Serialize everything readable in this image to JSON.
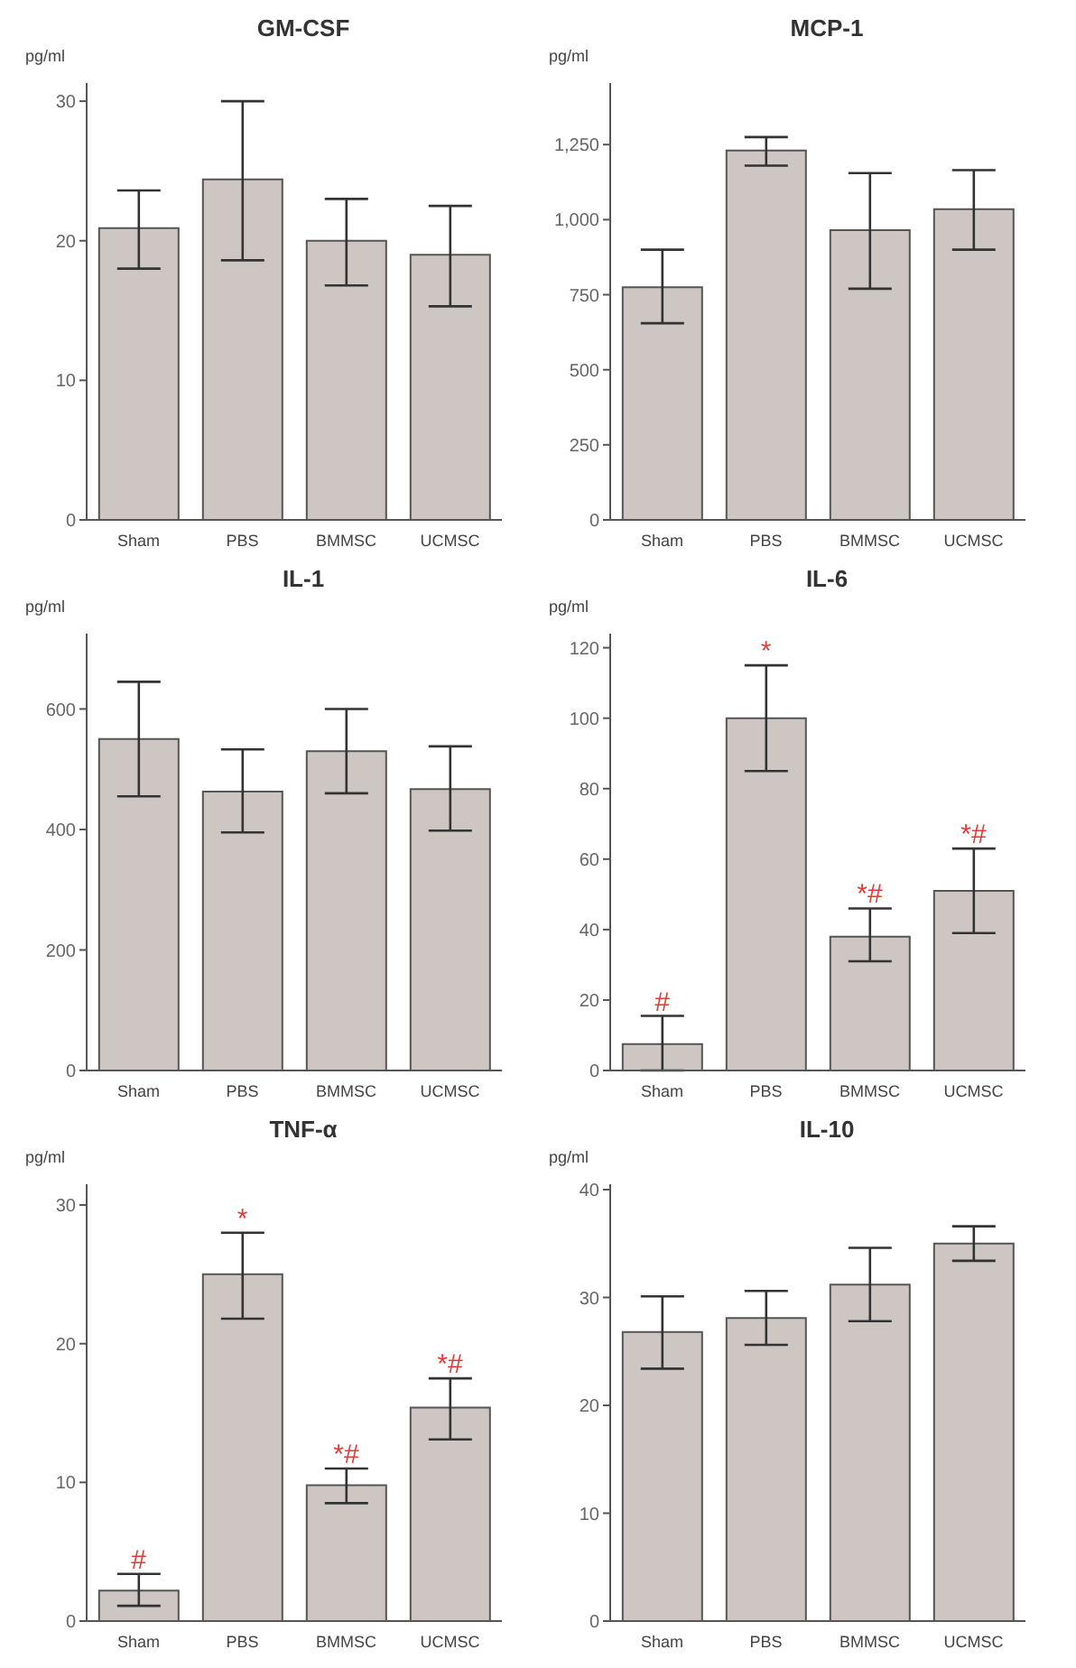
{
  "chart_data": [
    {
      "type": "bar",
      "title": "GM-CSF",
      "ylabel": "pg/ml",
      "categories": [
        "Sham",
        "PBS",
        "BMMSC",
        "UCMSC"
      ],
      "values": [
        20.9,
        24.4,
        20.0,
        19.0
      ],
      "errors": [
        [
          18.0,
          23.6
        ],
        [
          18.6,
          30.0
        ],
        [
          16.8,
          23.0
        ],
        [
          15.3,
          22.5
        ]
      ],
      "color": "#cdc6c3",
      "ylim": [
        0,
        31.3
      ],
      "yticks": [
        0,
        10,
        20,
        30
      ]
    },
    {
      "type": "bar",
      "title": "MCP-1",
      "ylabel": "pg/ml",
      "categories": [
        "Sham",
        "PBS",
        "BMMSC",
        "UCMSC"
      ],
      "values": [
        775,
        1230,
        965,
        1035
      ],
      "errors": [
        [
          655,
          900
        ],
        [
          1180,
          1275
        ],
        [
          770,
          1155
        ],
        [
          900,
          1165
        ]
      ],
      "color": "#cdc6c3",
      "ylim": [
        0,
        1455
      ],
      "yticks": [
        0,
        250,
        500,
        750,
        {
          "value": 1000,
          "label": "1,000"
        },
        {
          "value": 1250,
          "label": "1,250"
        }
      ]
    },
    {
      "type": "bar",
      "title": "IL-1",
      "ylabel": "pg/ml",
      "categories": [
        "Sham",
        "PBS",
        "BMMSC",
        "UCMSC"
      ],
      "values": [
        550,
        463,
        530,
        467
      ],
      "errors": [
        [
          455,
          645
        ],
        [
          395,
          533
        ],
        [
          460,
          600
        ],
        [
          398,
          538
        ]
      ],
      "color": "#cdc6c3",
      "ylim": [
        0,
        725
      ],
      "yticks": [
        0,
        200,
        400,
        600
      ]
    },
    {
      "type": "bar",
      "title": "IL-6",
      "ylabel": "pg/ml",
      "categories": [
        "Sham",
        "PBS",
        "BMMSC",
        "UCMSC"
      ],
      "values": [
        7.5,
        100,
        38,
        51
      ],
      "errors": [
        [
          0,
          15.5
        ],
        [
          85,
          115
        ],
        [
          31,
          46
        ],
        [
          39,
          63
        ]
      ],
      "color": "#cdc6c3",
      "ylim": [
        0,
        124
      ],
      "yticks": [
        0,
        20,
        40,
        60,
        80,
        100,
        120
      ],
      "annotations": [
        {
          "text": "#",
          "x": "Sham",
          "y": 15.5
        },
        {
          "text": "*",
          "x": "PBS",
          "y": 115
        },
        {
          "text": "*#",
          "x": "BMMSC",
          "y": 46
        },
        {
          "text": "*#",
          "x": "UCMSC",
          "y": 63
        }
      ]
    },
    {
      "type": "bar",
      "title": "TNF-α",
      "ylabel": "pg/ml",
      "categories": [
        "Sham",
        "PBS",
        "BMMSC",
        "UCMSC"
      ],
      "values": [
        2.2,
        25.0,
        9.8,
        15.4
      ],
      "errors": [
        [
          1.1,
          3.4
        ],
        [
          21.8,
          28.0
        ],
        [
          8.5,
          11.0
        ],
        [
          13.1,
          17.5
        ]
      ],
      "color": "#cdc6c3",
      "ylim": [
        0,
        31.5
      ],
      "yticks": [
        0,
        10,
        20,
        30
      ],
      "annotations": [
        {
          "text": "#",
          "x": "Sham",
          "y": 3.4
        },
        {
          "text": "*",
          "x": "PBS",
          "y": 28.0
        },
        {
          "text": "*#",
          "x": "BMMSC",
          "y": 11.0
        },
        {
          "text": "*#",
          "x": "UCMSC",
          "y": 17.5
        }
      ]
    },
    {
      "type": "bar",
      "title": "IL-10",
      "ylabel": "pg/ml",
      "categories": [
        "Sham",
        "PBS",
        "BMMSC",
        "UCMSC"
      ],
      "values": [
        26.8,
        28.1,
        31.2,
        35.0
      ],
      "errors": [
        [
          23.4,
          30.1
        ],
        [
          25.6,
          30.6
        ],
        [
          27.8,
          34.6
        ],
        [
          33.4,
          36.6
        ]
      ],
      "color": "#cdc6c3",
      "ylim": [
        0,
        40.5
      ],
      "yticks": [
        0,
        10,
        20,
        30,
        40
      ]
    }
  ]
}
